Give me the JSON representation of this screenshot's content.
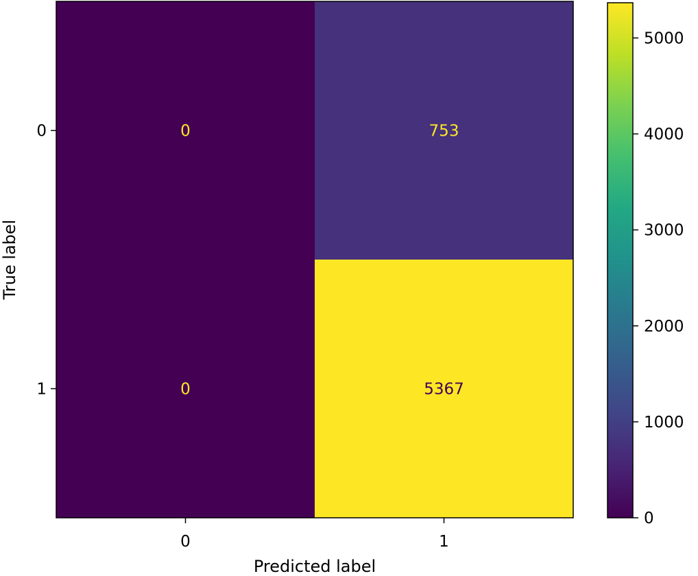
{
  "chart_data": {
    "type": "heatmap",
    "title": "",
    "xlabel": "Predicted label",
    "ylabel": "True label",
    "x_categories": [
      "0",
      "1"
    ],
    "y_categories": [
      "0",
      "1"
    ],
    "matrix": [
      [
        0,
        753
      ],
      [
        0,
        5367
      ]
    ],
    "colormap": "viridis",
    "vmin": 0,
    "vmax": 5367,
    "colorbar": {
      "ticks": [
        0,
        1000,
        2000,
        3000,
        4000,
        5000
      ],
      "tick_labels": [
        "0",
        "1000",
        "2000",
        "3000",
        "4000",
        "5000"
      ]
    },
    "colors": {
      "low_text": "#fde725",
      "high_text": "#440154"
    }
  }
}
